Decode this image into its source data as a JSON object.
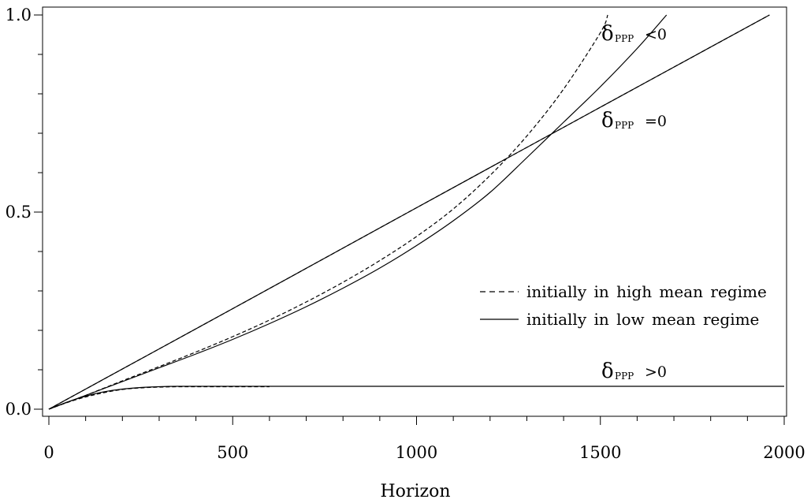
{
  "chart_data": {
    "type": "line",
    "title": "",
    "xlabel": "Horizon",
    "ylabel": "",
    "xlim": [
      0,
      2000
    ],
    "ylim": [
      0,
      1
    ],
    "xticks": [
      0,
      500,
      1000,
      1500,
      2000
    ],
    "xtick_labels": [
      "0",
      "500",
      "1000",
      "1500",
      "2000"
    ],
    "yticks": [
      0,
      0.5,
      1
    ],
    "ytick_labels": [
      "0.0",
      "0.5",
      "1.0"
    ],
    "grid": false,
    "legend": {
      "position": "right",
      "entries": [
        {
          "label": "initially in high mean regime",
          "style": "dashed"
        },
        {
          "label": "initially in low mean regime",
          "style": "solid"
        }
      ]
    },
    "annotations": [
      {
        "id": "neg",
        "symbol": "δ",
        "subscript": "PPP",
        "relation": "<0"
      },
      {
        "id": "zero",
        "symbol": "δ",
        "subscript": "PPP",
        "relation": "=0"
      },
      {
        "id": "pos",
        "symbol": "δ",
        "subscript": "PPP",
        "relation": ">0"
      }
    ],
    "series": [
      {
        "group": "δ_PPP<0",
        "style": "dashed",
        "x": [
          0,
          100,
          200,
          300,
          400,
          500,
          600,
          700,
          800,
          900,
          1000,
          1100,
          1200,
          1300,
          1400,
          1500,
          1520
        ],
        "y": [
          0,
          0.035,
          0.072,
          0.108,
          0.145,
          0.184,
          0.226,
          0.272,
          0.322,
          0.377,
          0.438,
          0.508,
          0.593,
          0.693,
          0.812,
          0.955,
          1.0
        ]
      },
      {
        "group": "δ_PPP<0",
        "style": "solid",
        "x": [
          0,
          100,
          200,
          300,
          400,
          500,
          600,
          700,
          800,
          900,
          1000,
          1100,
          1200,
          1300,
          1400,
          1500,
          1600,
          1680
        ],
        "y": [
          0,
          0.035,
          0.07,
          0.105,
          0.14,
          0.177,
          0.217,
          0.26,
          0.307,
          0.358,
          0.415,
          0.478,
          0.55,
          0.638,
          0.728,
          0.818,
          0.915,
          1.0
        ]
      },
      {
        "group": "δ_PPP=0",
        "style": "dashed",
        "x": [
          0,
          500,
          1000,
          1500,
          1960
        ],
        "y": [
          0,
          0.255,
          0.511,
          0.766,
          1.0
        ]
      },
      {
        "group": "δ_PPP=0",
        "style": "solid",
        "x": [
          0,
          500,
          1000,
          1500,
          1960
        ],
        "y": [
          0,
          0.255,
          0.511,
          0.766,
          1.0
        ]
      },
      {
        "group": "δ_PPP>0",
        "style": "dashed",
        "x": [
          0,
          50,
          100,
          150,
          200,
          250,
          300,
          350,
          400,
          500,
          600
        ],
        "y": [
          0,
          0.017,
          0.031,
          0.042,
          0.05,
          0.054,
          0.056,
          0.057,
          0.057,
          0.057,
          0.057
        ]
      },
      {
        "group": "δ_PPP>0",
        "style": "solid",
        "x": [
          0,
          50,
          100,
          150,
          200,
          250,
          300,
          350,
          400,
          500,
          1000,
          1500,
          2000
        ],
        "y": [
          0,
          0.018,
          0.033,
          0.044,
          0.051,
          0.055,
          0.057,
          0.058,
          0.058,
          0.058,
          0.058,
          0.058,
          0.058
        ]
      }
    ]
  }
}
